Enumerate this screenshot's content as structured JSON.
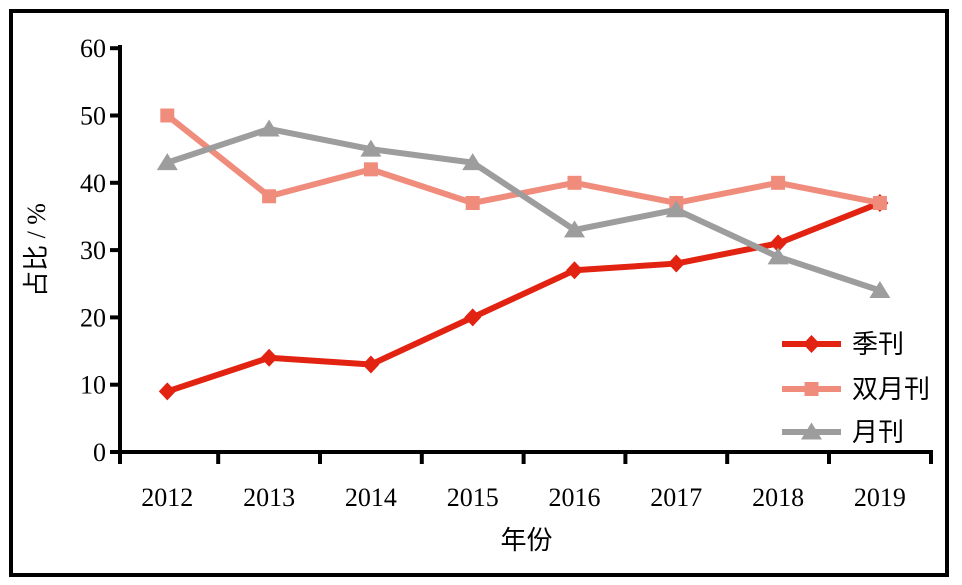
{
  "chart_data": {
    "type": "line",
    "title": "",
    "categories": [
      "2012",
      "2013",
      "2014",
      "2015",
      "2016",
      "2017",
      "2018",
      "2019"
    ],
    "series": [
      {
        "name": "季刊",
        "color": "#e32312",
        "marker": "diamond",
        "values": [
          9,
          14,
          13,
          20,
          27,
          28,
          31,
          37
        ]
      },
      {
        "name": "双月刊",
        "color": "#f08c7c",
        "marker": "square",
        "values": [
          50,
          38,
          42,
          37,
          40,
          37,
          40,
          37
        ]
      },
      {
        "name": "月刊",
        "color": "#9d9d9d",
        "marker": "triangle",
        "values": [
          43,
          48,
          45,
          43,
          33,
          36,
          29,
          24
        ]
      }
    ],
    "xlabel": "年份",
    "ylabel": "占比 / %",
    "ylim": [
      0,
      60
    ],
    "yticks": [
      0,
      10,
      20,
      30,
      40,
      50,
      60
    ],
    "grid": false,
    "legend_position": "inside-right",
    "axis_color": "#000000",
    "frame_color": "#000000",
    "background": "#ffffff"
  }
}
